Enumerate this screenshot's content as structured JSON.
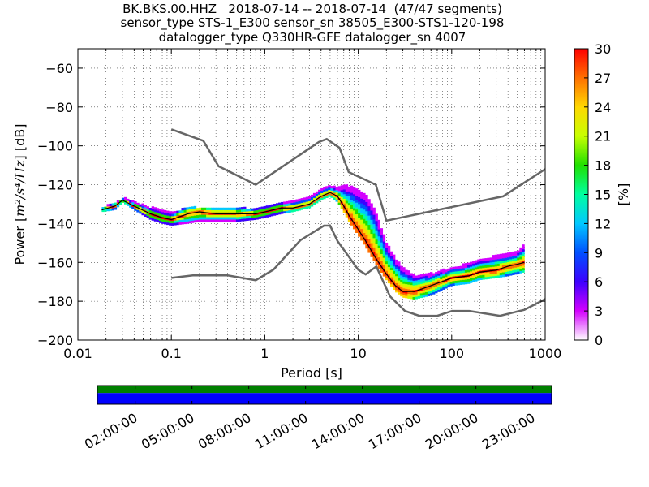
{
  "title_lines": [
    "BK.BKS.00.HHZ   2018-07-14 -- 2018-07-14  (47/47 segments)",
    "sensor_type STS-1_E300 sensor_sn 38505_E300-STS1-120-198",
    "datalogger_type Q330HR-GFE datalogger_sn 4007"
  ],
  "chart_data": {
    "type": "heatmap",
    "xlabel": "Period [s]",
    "ylabel": "Power [m²/s⁴/Hz] [dB]",
    "ylabel_parts": {
      "prefix": "Power [",
      "unit": "m²/s⁴/Hz",
      "suffix": "] [dB]"
    },
    "x_scale": "log",
    "xlim": [
      0.01,
      1000
    ],
    "ylim": [
      -200,
      -50
    ],
    "x_ticks": [
      0.01,
      0.1,
      1,
      10,
      100,
      1000
    ],
    "x_tick_labels": [
      "0.01",
      "0.1",
      "1",
      "10",
      "100",
      "1000"
    ],
    "y_ticks": [
      -60,
      -80,
      -100,
      -120,
      -140,
      -160,
      -180,
      -200
    ],
    "y_tick_labels": [
      "−60",
      "−80",
      "−100",
      "−120",
      "−140",
      "−160",
      "−180",
      "−200"
    ],
    "grid": true,
    "colorbar": {
      "label": "[%]",
      "range": [
        0,
        30
      ],
      "ticks": [
        0,
        3,
        6,
        9,
        12,
        15,
        18,
        21,
        24,
        27,
        30
      ],
      "tick_labels": [
        "0",
        "3",
        "6",
        "9",
        "12",
        "15",
        "18",
        "21",
        "24",
        "27",
        "30"
      ],
      "colors": [
        "#ffffff",
        "#d400ff",
        "#3c00ff",
        "#0050ff",
        "#00c8ff",
        "#00ffa0",
        "#20e000",
        "#c8ff00",
        "#ffd800",
        "#ff7000",
        "#ff0000"
      ]
    },
    "noise_model_high": {
      "name": "",
      "x": [
        0.1,
        0.22,
        0.32,
        0.8,
        3.8,
        4.6,
        6.3,
        7.9,
        15.4,
        20,
        354.8,
        1000
      ],
      "y": [
        -91.5,
        -97.4,
        -110.5,
        -120,
        -98,
        -96.5,
        -101,
        -113.5,
        -120,
        -138.5,
        -126,
        -112
      ]
    },
    "noise_model_low": {
      "name": "",
      "x": [
        0.1,
        0.17,
        0.4,
        0.8,
        1.24,
        2.4,
        4.3,
        5,
        6,
        10,
        12,
        15.6,
        21.9,
        31.6,
        45,
        70,
        101,
        154,
        328,
        600,
        1000
      ],
      "y": [
        -168,
        -166.7,
        -166.7,
        -169.2,
        -163.7,
        -148.6,
        -141.1,
        -141.1,
        -149,
        -163.8,
        -166.2,
        -162.1,
        -177.5,
        -185,
        -187.5,
        -187.5,
        -185,
        -185,
        -187.5,
        -184.4,
        -178.9
      ]
    },
    "mode_curve": {
      "name": "",
      "x": [
        0.018,
        0.025,
        0.03,
        0.04,
        0.06,
        0.08,
        0.1,
        0.15,
        0.2,
        0.3,
        0.5,
        0.8,
        1.0,
        1.5,
        2.0,
        3.0,
        4.0,
        5.0,
        6.0,
        7.0,
        8.0,
        10,
        12,
        15,
        20,
        25,
        30,
        40,
        60,
        100,
        150,
        200,
        300,
        400,
        500,
        600
      ],
      "y": [
        -133,
        -131,
        -128,
        -131,
        -135,
        -137,
        -138,
        -135,
        -134,
        -135,
        -135,
        -135,
        -134,
        -132,
        -132,
        -130,
        -126,
        -124,
        -126,
        -131,
        -136,
        -143,
        -149,
        -157,
        -166,
        -172,
        -175,
        -175,
        -172,
        -168,
        -167,
        -165,
        -164,
        -162,
        -161,
        -160
      ]
    },
    "psd_band": {
      "x": [
        0.018,
        0.025,
        0.03,
        0.04,
        0.06,
        0.08,
        0.1,
        0.15,
        0.2,
        0.3,
        0.5,
        0.8,
        1.0,
        1.5,
        2.0,
        3.0,
        4.0,
        5.0,
        6.0,
        7.0,
        8.0,
        10,
        12,
        15,
        20,
        25,
        30,
        40,
        60,
        100,
        150,
        200,
        300,
        400,
        500,
        600
      ],
      "y_low": [
        -134,
        -133,
        -129,
        -133,
        -138,
        -140,
        -141,
        -140,
        -139,
        -139,
        -139,
        -138,
        -137,
        -135,
        -134,
        -132,
        -128,
        -126,
        -129,
        -134,
        -139,
        -146,
        -152,
        -160,
        -169,
        -175,
        -178,
        -179,
        -177,
        -172,
        -171,
        -169,
        -168,
        -167,
        -166,
        -165
      ],
      "y_high": [
        -132,
        -130,
        -127,
        -129,
        -132,
        -134,
        -135,
        -132,
        -132,
        -132,
        -132,
        -133,
        -132,
        -129,
        -129,
        -127,
        -123,
        -121,
        -122,
        -121,
        -121,
        -123,
        -125,
        -133,
        -150,
        -158,
        -163,
        -167,
        -166,
        -163,
        -161,
        -159,
        -157,
        -156,
        -155,
        -151
      ]
    },
    "timeline": {
      "tick_labels": [
        "02:00:00",
        "05:00:00",
        "08:00:00",
        "11:00:00",
        "14:00:00",
        "17:00:00",
        "20:00:00",
        "23:00:00"
      ],
      "tick_hours": [
        2,
        5,
        8,
        11,
        14,
        17,
        20,
        23
      ],
      "range_hours": [
        0,
        24
      ],
      "coverage_color": "#008000",
      "data_color": "#0000ff"
    }
  }
}
